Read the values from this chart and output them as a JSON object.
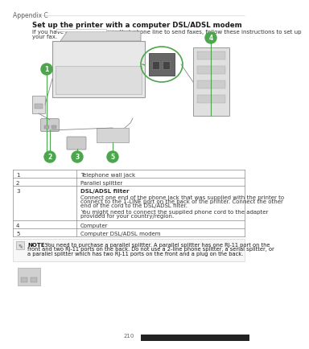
{
  "page_label": "Appendix C",
  "title": "Set up the printer with a computer DSL/ADSL modem",
  "intro_line1": "If you have a DSL line and use that phone line to send faxes, follow these instructions to set up",
  "intro_line2": "your fax.",
  "table_rows": [
    {
      "num": "1",
      "text": [
        "Telephone wall jack"
      ],
      "bold_first": false
    },
    {
      "num": "2",
      "text": [
        "Parallel splitter"
      ],
      "bold_first": false
    },
    {
      "num": "3",
      "text": [
        "DSL/ADSL filter",
        "",
        "Connect one end of the phone jack that was supplied with the printer to",
        "connect to the 1-LINE port on the back of the printer. Connect the other",
        "end of the cord to the DSL/ADSL filter.",
        "",
        "You might need to connect the supplied phone cord to the adapter",
        "provided for your country/region."
      ],
      "bold_first": true
    },
    {
      "num": "4",
      "text": [
        "Computer"
      ],
      "bold_first": false
    },
    {
      "num": "5",
      "text": [
        "Computer DSL/ADSL modem"
      ],
      "bold_first": false
    }
  ],
  "note_bold": "NOTE:",
  "note_text": "  You need to purchase a parallel splitter. A parallel splitter has one RJ-11 port on the front and two RJ-11 ports on the back. Do not use a 2-line phone splitter, a serial splitter, or a parallel splitter which has two RJ-11 ports on the front and a plug on the back.",
  "page_num": "210",
  "bg_color": "#ffffff",
  "text_color": "#1a1a1a",
  "gray_text": "#666666",
  "light_gray": "#aaaaaa",
  "green": "#4ca64c",
  "table_border": "#888888",
  "diagram_bg": "#f0f0f0"
}
